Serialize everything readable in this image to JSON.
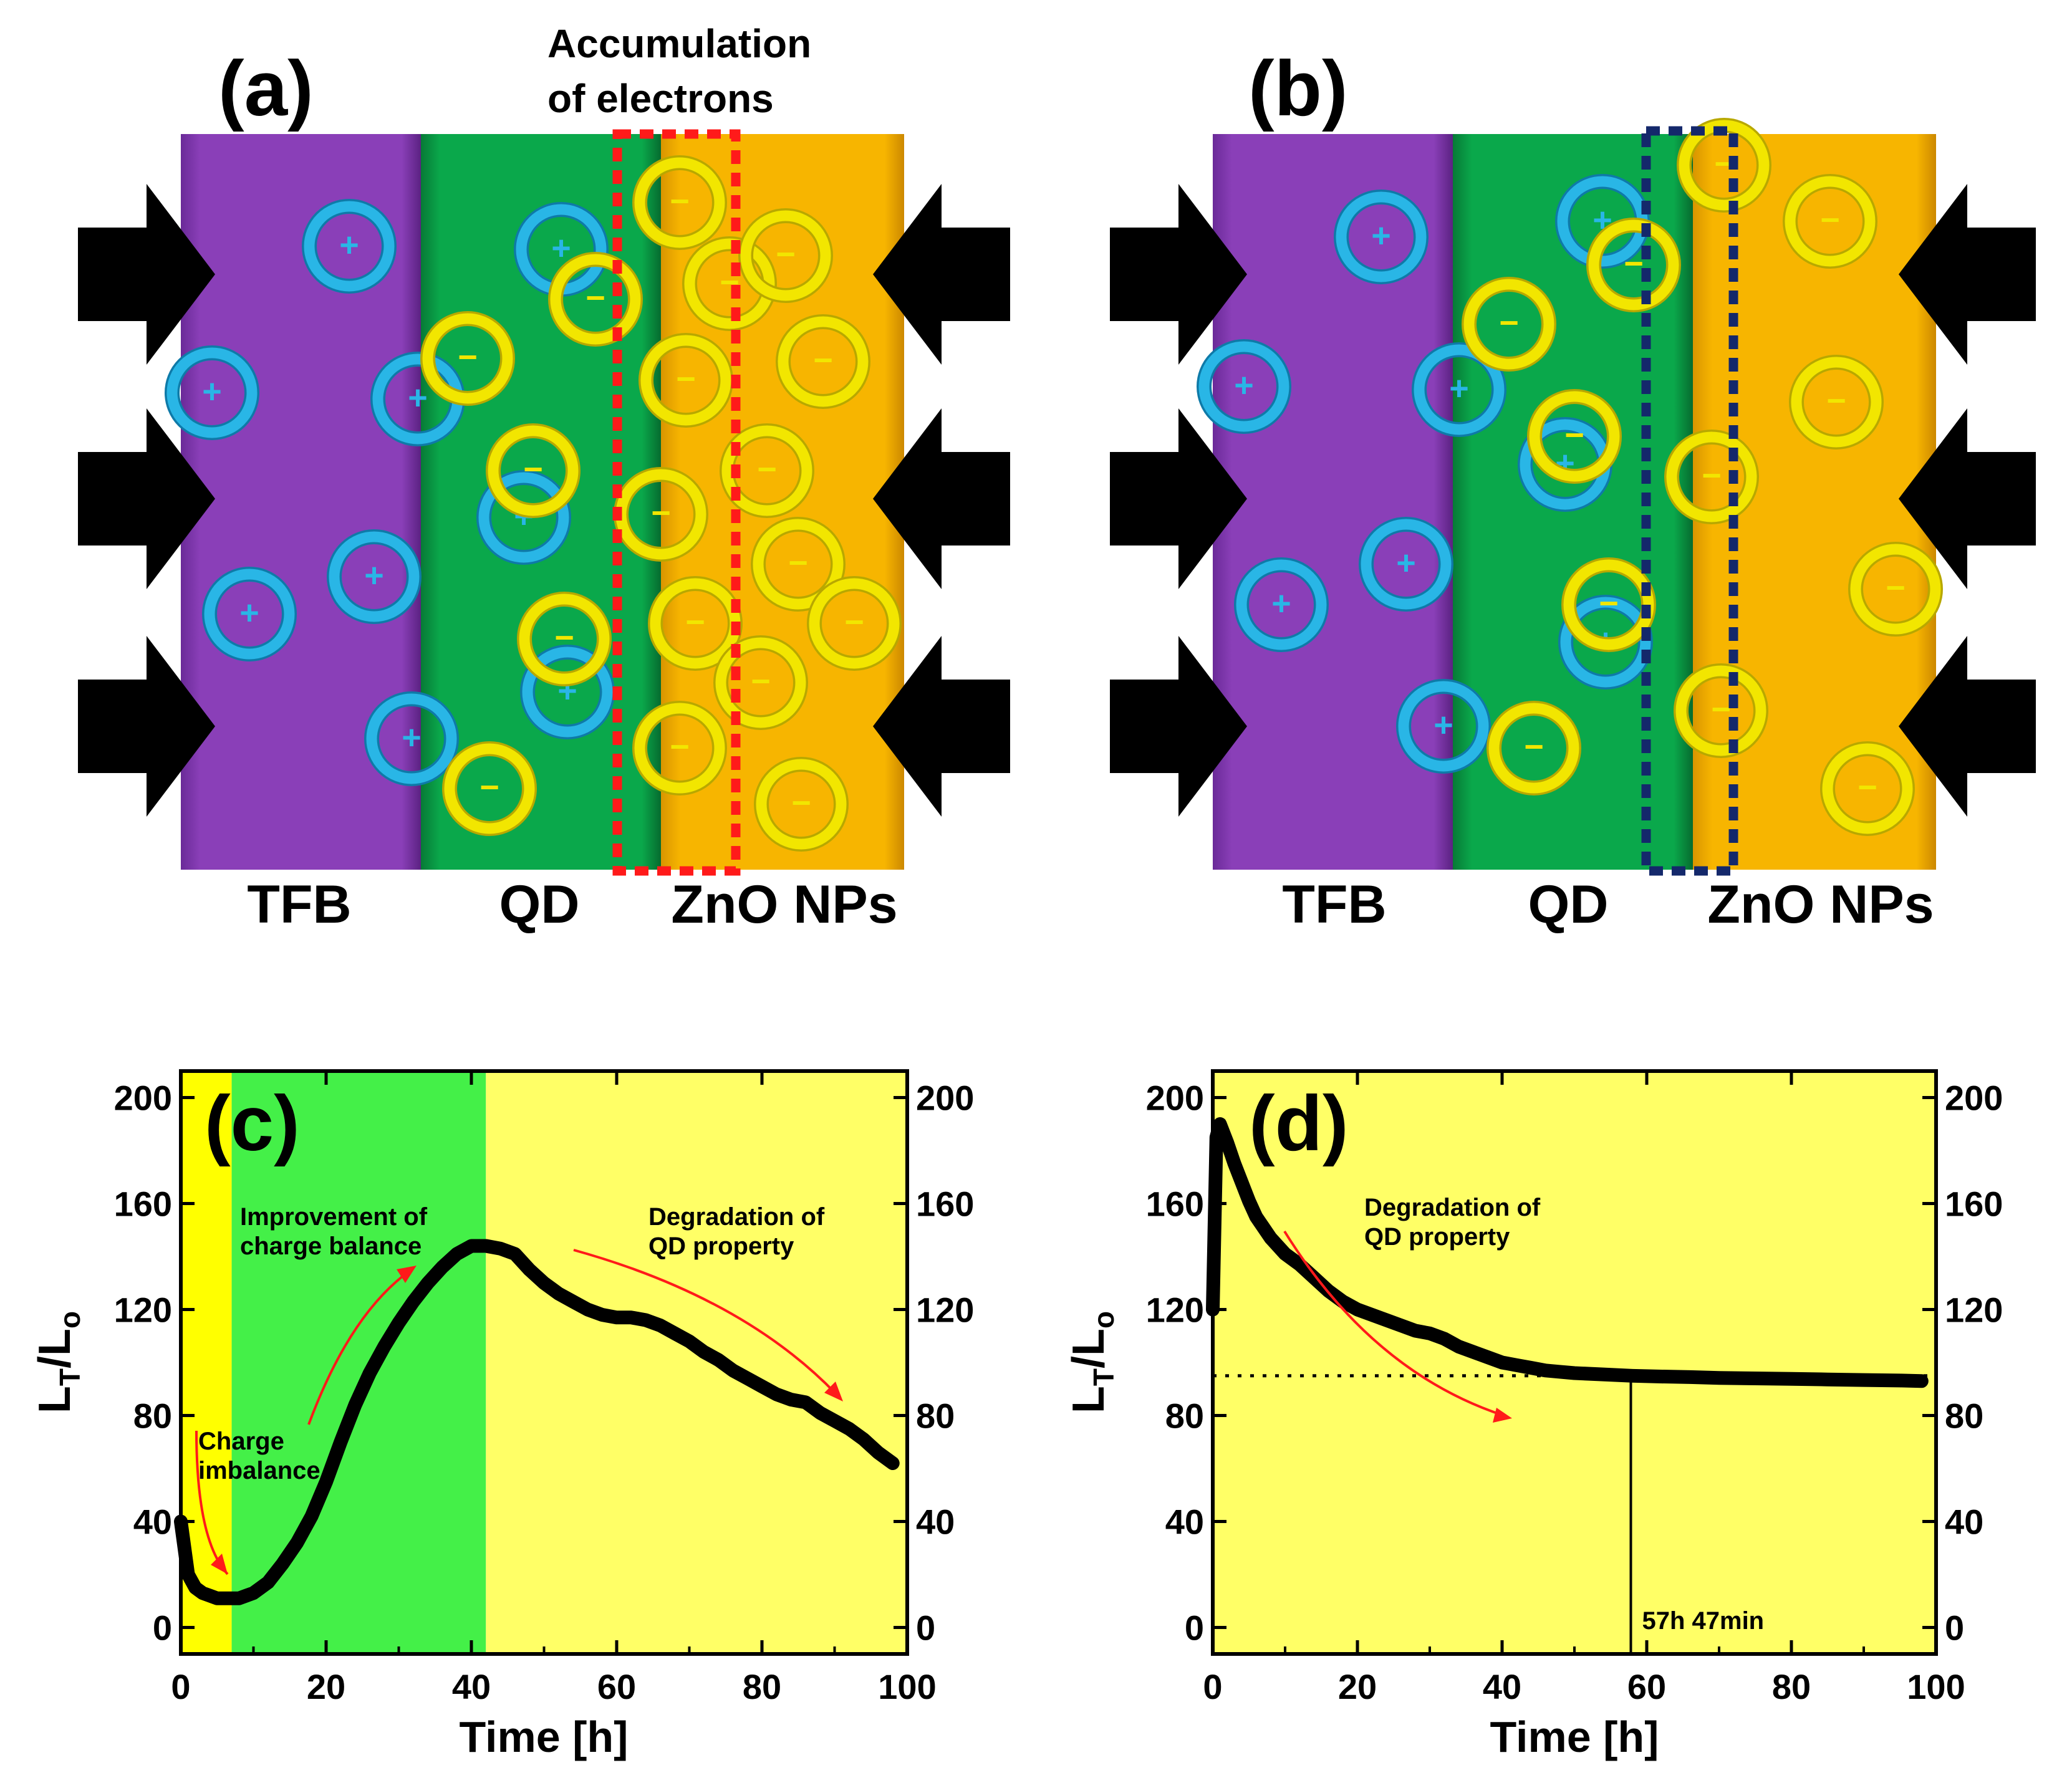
{
  "panels": {
    "a": {
      "label": "(a)",
      "callout": [
        "Accumulation",
        "of electrons"
      ],
      "layers": [
        "TFB",
        "QD",
        "ZnO NPs"
      ]
    },
    "b": {
      "label": "(b)",
      "layers": [
        "TFB",
        "QD",
        "ZnO NPs"
      ]
    }
  },
  "glyphs": {
    "hole": "+",
    "electron": "−"
  },
  "colors": {
    "tfb": "#8a3fb8",
    "qd": "#0aa84b",
    "zno": "#f7b500",
    "hole_ring": "#29b6e6",
    "electron_ring": "#f2e600",
    "callout_box_a": "#ff1a1a",
    "callout_box_b": "#14286b",
    "annotation_arrow": "#ff1a1a",
    "plot_bg": "#ffff66",
    "zone_charge_imbalance": "#ffff00",
    "zone_charge_balance": "#44f048"
  },
  "chart_data": [
    {
      "type": "line",
      "panel_label": "(c)",
      "xlabel": "Time [h]",
      "ylabel": "L_T/L_o",
      "ylabel_parts": {
        "main1": "L",
        "sub1": "T",
        "slash": "/",
        "main2": "L",
        "sub2": "o"
      },
      "xlim": [
        0,
        100
      ],
      "ylim": [
        -10,
        210
      ],
      "xticks": [
        0,
        20,
        40,
        60,
        80,
        100
      ],
      "yticks": [
        0,
        40,
        80,
        120,
        160,
        200
      ],
      "right_yticks": [
        0,
        40,
        80,
        120,
        160,
        200
      ],
      "grid": false,
      "legend": "none",
      "zones": [
        {
          "x": [
            0,
            7
          ],
          "color": "#ffff00"
        },
        {
          "x": [
            7,
            42
          ],
          "color": "#44f048"
        },
        {
          "x": [
            42,
            100
          ],
          "color": "#ffff66"
        }
      ],
      "annotations": [
        {
          "text": [
            "Charge",
            "imbalance"
          ]
        },
        {
          "text": [
            "Improvement of",
            "charge balance"
          ]
        },
        {
          "text": [
            "Degradation of",
            "QD property"
          ]
        }
      ],
      "series": [
        {
          "x": [
            0,
            1,
            2,
            3,
            4,
            5,
            6,
            7,
            8,
            9,
            10,
            12,
            14,
            16,
            18,
            20,
            22,
            24,
            26,
            28,
            30,
            32,
            34,
            36,
            38,
            40,
            42,
            44,
            46,
            48,
            50,
            52,
            54,
            56,
            58,
            60,
            62,
            64,
            66,
            68,
            70,
            72,
            74,
            76,
            78,
            80,
            82,
            84,
            86,
            88,
            90,
            92,
            94,
            96,
            98
          ],
          "y": [
            40,
            20,
            15,
            13,
            12,
            11,
            11,
            11,
            11,
            12,
            13,
            17,
            24,
            32,
            42,
            55,
            70,
            84,
            96,
            106,
            115,
            123,
            130,
            136,
            141,
            144,
            144,
            143,
            141,
            135,
            130,
            126,
            123,
            120,
            118,
            117,
            117,
            116,
            114,
            111,
            108,
            104,
            101,
            97,
            94,
            91,
            88,
            86,
            85,
            81,
            78,
            75,
            71,
            66,
            62
          ]
        }
      ]
    },
    {
      "type": "line",
      "panel_label": "(d)",
      "xlabel": "Time [h]",
      "ylabel": "L_T/L_o",
      "ylabel_parts": {
        "main1": "L",
        "sub1": "T",
        "slash": "/",
        "main2": "L",
        "sub2": "o"
      },
      "xlim": [
        0,
        100
      ],
      "ylim": [
        -10,
        210
      ],
      "xticks": [
        0,
        20,
        40,
        60,
        80,
        100
      ],
      "yticks": [
        0,
        40,
        80,
        120,
        160,
        200
      ],
      "right_yticks": [
        0,
        40,
        80,
        120,
        160,
        200
      ],
      "grid": false,
      "legend": "none",
      "reference_line_y": 95,
      "marker_x": 57.8,
      "marker_label": "57h 47min",
      "annotations": [
        {
          "text": [
            "Degradation of",
            "QD property"
          ]
        }
      ],
      "series": [
        {
          "x": [
            0,
            0.5,
            1,
            2,
            3,
            4,
            5,
            6,
            8,
            10,
            12,
            14,
            16,
            18,
            20,
            22,
            24,
            26,
            28,
            30,
            32,
            34,
            36,
            38,
            40,
            42,
            44,
            46,
            48,
            50,
            54,
            58,
            62,
            66,
            70,
            75,
            80,
            85,
            90,
            95,
            98
          ],
          "y": [
            120,
            185,
            190,
            183,
            175,
            168,
            161,
            155,
            147,
            141,
            137,
            132,
            127,
            123,
            120,
            118,
            116,
            114,
            112,
            111,
            109,
            106,
            104,
            102,
            100,
            99,
            98,
            97,
            96.5,
            96,
            95.5,
            95,
            94.7,
            94.5,
            94.2,
            94,
            93.8,
            93.6,
            93.4,
            93.2,
            93
          ]
        }
      ]
    }
  ]
}
